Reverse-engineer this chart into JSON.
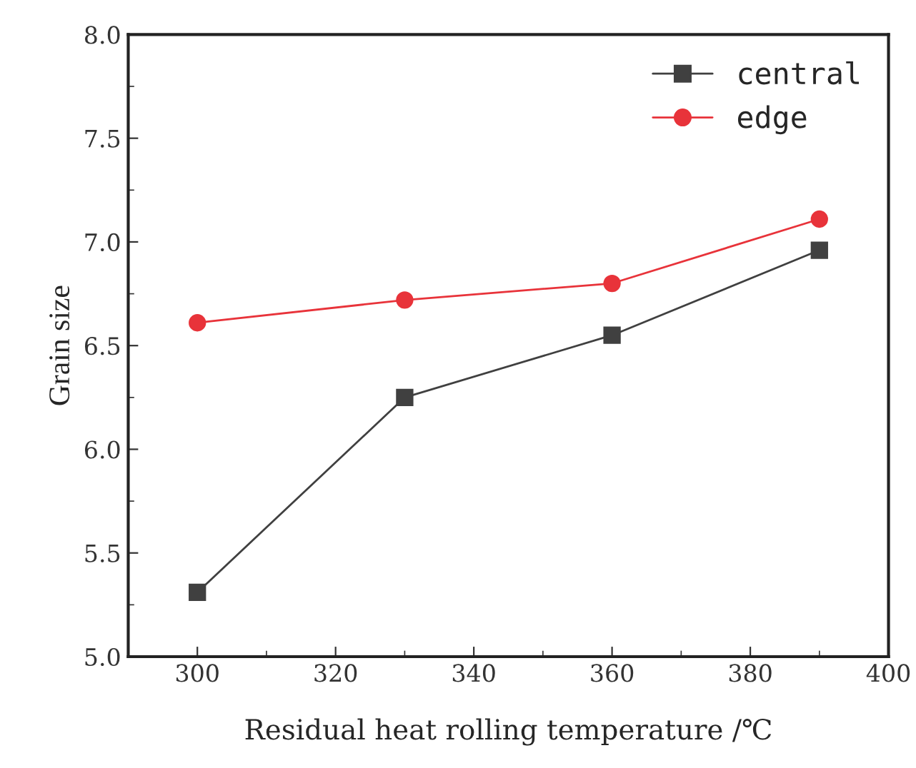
{
  "chart_data": {
    "type": "line",
    "xlabel": "Residual heat rolling temperature /℃",
    "ylabel": "Grain size",
    "x": [
      300,
      330,
      360,
      390
    ],
    "series": [
      {
        "name": "central",
        "color": "#404040",
        "marker": "square",
        "values": [
          5.31,
          6.25,
          6.55,
          6.96
        ]
      },
      {
        "name": "edge",
        "color": "#e8333a",
        "marker": "circle",
        "values": [
          6.61,
          6.72,
          6.8,
          7.11
        ]
      }
    ],
    "xlim": [
      290,
      400
    ],
    "xticks": [
      300,
      320,
      340,
      360,
      380,
      400
    ],
    "ylim": [
      5.0,
      8.0
    ],
    "yticks": [
      {
        "value": 5.0,
        "label": "5.0"
      },
      {
        "value": 5.5,
        "label": "5.5"
      },
      {
        "value": 6.0,
        "label": "6.0"
      },
      {
        "value": 6.5,
        "label": "6.5"
      },
      {
        "value": 7.0,
        "label": "7.0"
      },
      {
        "value": 7.5,
        "label": "7.5"
      },
      {
        "value": 8.0,
        "label": "8.0"
      }
    ],
    "grid": false,
    "legend": "top right"
  }
}
